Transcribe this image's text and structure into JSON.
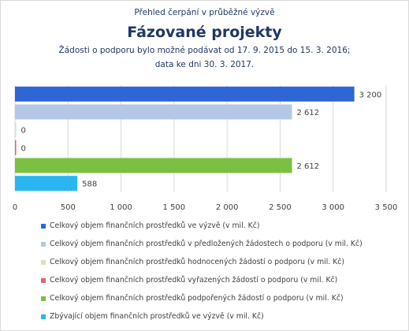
{
  "header": {
    "supertitle": "Přehled čerpání v průběžné výzvě",
    "title": "Fázované projekty",
    "subtitle_line1": "Žádosti o podporu bylo možné podávat od 17. 9. 2015 do 15. 3. 2016;",
    "subtitle_line2": "data ke dni 30. 3. 2017."
  },
  "chart_data": {
    "type": "bar",
    "orientation": "horizontal",
    "xlim": [
      0,
      3500
    ],
    "xticks": [
      0,
      500,
      1000,
      1500,
      2000,
      2500,
      3000,
      3500
    ],
    "xtick_labels": [
      "0",
      "500",
      "1 000",
      "1 500",
      "2 000",
      "2 500",
      "3 000",
      "3 500"
    ],
    "grid": true,
    "legend_position": "bottom",
    "series": [
      {
        "name": "Celkový objem finančních prostředků ve výzvě (v mil. Kč)",
        "value": 3200,
        "label": "3 200",
        "color": "#2e66d6"
      },
      {
        "name": "Celkový objem finančních prostředků v předložených žádostech o podporu (v mil. Kč)",
        "value": 2612,
        "label": "2 612",
        "color": "#b4c7e7"
      },
      {
        "name": "Celkový objem finančních prostředků hodnocených žádostí o podporu (v mil. Kč)",
        "value": 0,
        "label": "0",
        "color": "#d6e4bc"
      },
      {
        "name": "Celkový objem finančních prostředků vyřazených žádostí o podporu (v mil. Kč)",
        "value": 0,
        "label": "0",
        "color": "#e06666"
      },
      {
        "name": "Celkový objem finančních prostředků podpořených žádostí o podporu (v mil. Kč)",
        "value": 2612,
        "label": "2 612",
        "color": "#7ac143"
      },
      {
        "name": "Zbývající objem finančních prostředků ve výzvě (v mil. Kč)",
        "value": 588,
        "label": "588",
        "color": "#29b6f0"
      }
    ]
  }
}
